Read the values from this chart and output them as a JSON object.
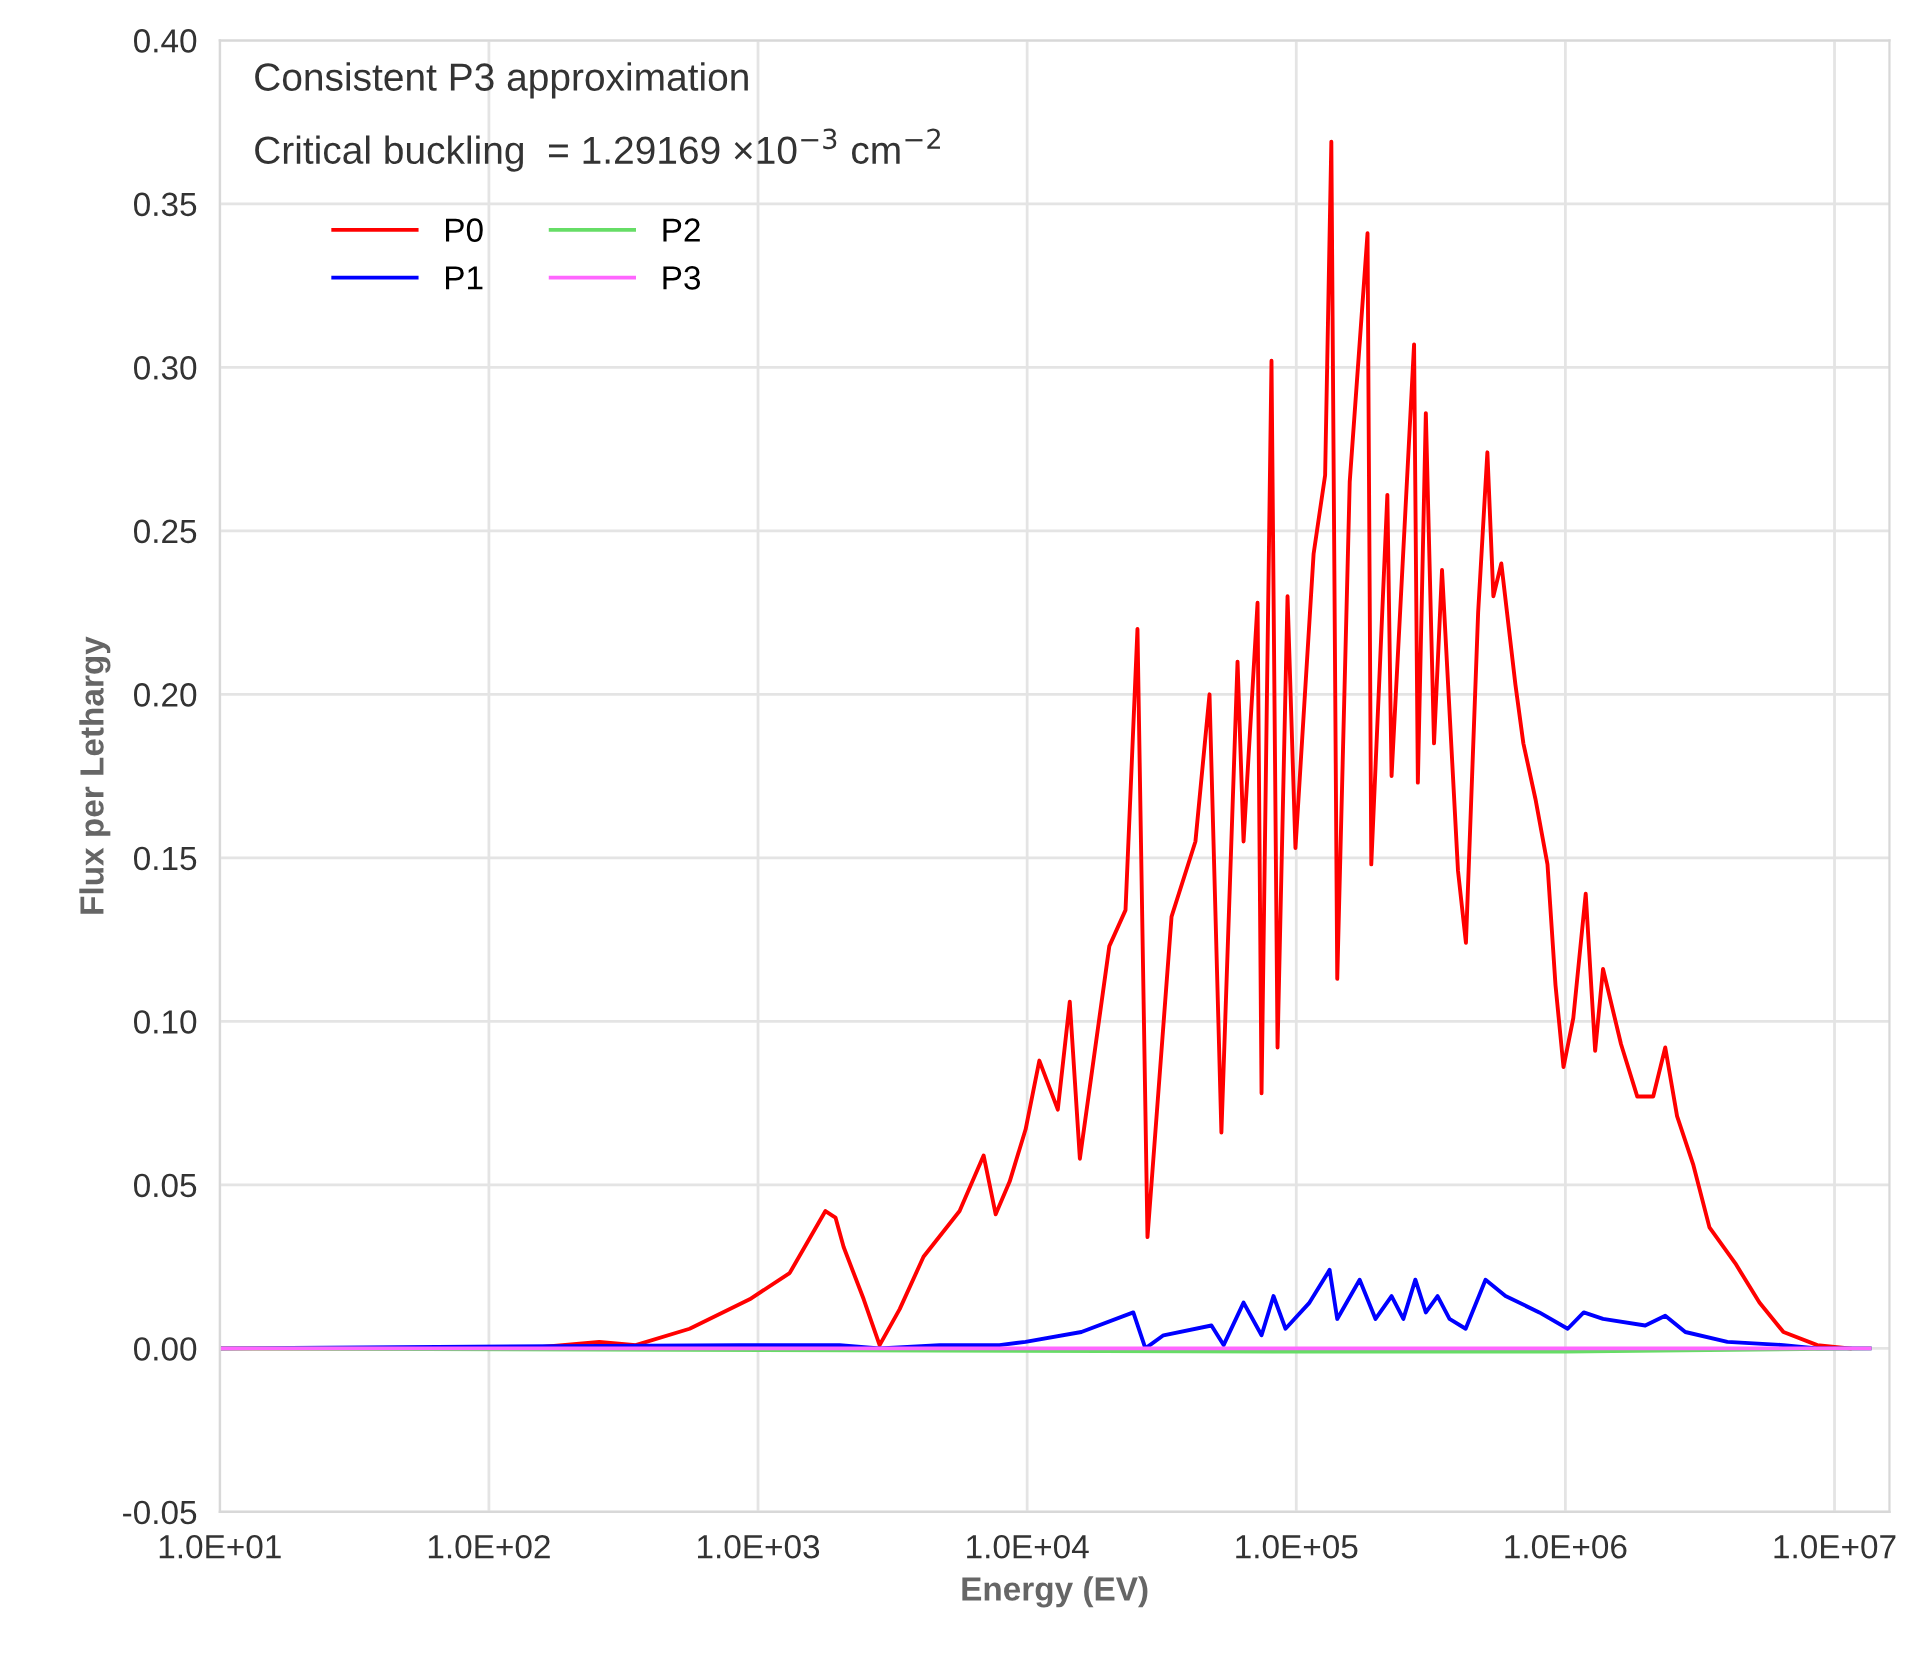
{
  "chart_data": {
    "type": "line",
    "xlabel": "Energy (EV)",
    "ylabel": "Flux per Lethargy",
    "annotations": [
      "Consistent P3 approximation",
      "Critical buckling  = 1.29169 ×10$^{−3}$ cm$^{−2}$"
    ],
    "log": "x",
    "grid": true,
    "legend": "top left",
    "line_style": "solid",
    "marker": "none",
    "xlim": [
      10,
      16000000
    ],
    "xticks": [
      {
        "value": 10,
        "label": "1.0E+01"
      },
      {
        "value": 100,
        "label": "1.0E+02"
      },
      {
        "value": 1000,
        "label": "1.0E+03"
      },
      {
        "value": 10000,
        "label": "1.0E+04"
      },
      {
        "value": 100000,
        "label": "1.0E+05"
      },
      {
        "value": 1000000,
        "label": "1.0E+06"
      },
      {
        "value": 10000000,
        "label": "1.0E+07"
      }
    ],
    "ylim": [
      -0.05,
      0.4
    ],
    "yticks": [
      {
        "value": -0.05,
        "label": "-0.05"
      },
      {
        "value": 0,
        "label": "0.00"
      },
      {
        "value": 0.05,
        "label": "0.05"
      },
      {
        "value": 0.1,
        "label": "0.10"
      },
      {
        "value": 0.15,
        "label": "0.15"
      },
      {
        "value": 0.2,
        "label": "0.20"
      },
      {
        "value": 0.25,
        "label": "0.25"
      },
      {
        "value": 0.3,
        "label": "0.30"
      },
      {
        "value": 0.35,
        "label": "0.35"
      },
      {
        "value": 0.4,
        "label": "0.40"
      }
    ],
    "series": [
      {
        "name": "P0",
        "color": "#ff0000",
        "x": [
          10,
          137,
          257,
          351,
          557,
          931,
          1310,
          1780,
          1940,
          2080,
          2470,
          2830,
          3360,
          4120,
          5610,
          6890,
          7640,
          8610,
          9870,
          11100,
          13000,
          14400,
          15700,
          20200,
          23200,
          25700,
          28000,
          34400,
          42200,
          47600,
          52700,
          60500,
          63700,
          71800,
          74300,
          80900,
          85200,
          92800,
          99300,
          116000,
          128000,
          135000,
          142000,
          158000,
          184000,
          190000,
          218000,
          226000,
          274000,
          283000,
          303000,
          325000,
          348000,
          399000,
          427000,
          474000,
          513000,
          540000,
          578000,
          652000,
          698000,
          774000,
          858000,
          919000,
          984000,
          1070000,
          1190000,
          1290000,
          1380000,
          1610000,
          1850000,
          2120000,
          2350000,
          2600000,
          2990000,
          3430000,
          4280000,
          5260000,
          6460000,
          8630000,
          11400000
        ],
        "values": [
          0,
          0,
          0.002,
          0.001,
          0.006,
          0.015,
          0.023,
          0.042,
          0.04,
          0.031,
          0.015,
          0.001,
          0.012,
          0.028,
          0.042,
          0.059,
          0.041,
          0.051,
          0.067,
          0.088,
          0.073,
          0.106,
          0.058,
          0.123,
          0.134,
          0.22,
          0.034,
          0.132,
          0.155,
          0.2,
          0.066,
          0.21,
          0.155,
          0.228,
          0.078,
          0.302,
          0.092,
          0.23,
          0.153,
          0.243,
          0.267,
          0.369,
          0.113,
          0.265,
          0.341,
          0.148,
          0.261,
          0.175,
          0.307,
          0.173,
          0.286,
          0.185,
          0.238,
          0.146,
          0.124,
          0.225,
          0.274,
          0.23,
          0.24,
          0.203,
          0.185,
          0.168,
          0.148,
          0.111,
          0.086,
          0.101,
          0.139,
          0.091,
          0.116,
          0.093,
          0.077,
          0.077,
          0.092,
          0.071,
          0.056,
          0.037,
          0.026,
          0.014,
          0.005,
          0.001,
          0
        ]
      },
      {
        "name": "P1",
        "color": "#0000ff",
        "x": [
          10,
          855,
          2010,
          2830,
          4730,
          7890,
          9860,
          15900,
          24800,
          27500,
          32100,
          48400,
          53700,
          63700,
          74300,
          82300,
          91200,
          112000,
          133000,
          142000,
          172000,
          197000,
          226000,
          250000,
          277000,
          303000,
          335000,
          371000,
          426000,
          505000,
          599000,
          800000,
          1020000,
          1170000,
          1380000,
          1980000,
          2350000,
          2790000,
          4000000,
          6460000,
          8630000,
          13500000
        ],
        "values": [
          0,
          0.001,
          0.001,
          0,
          0.001,
          0.001,
          0.002,
          0.005,
          0.011,
          0,
          0.004,
          0.007,
          0.001,
          0.014,
          0.004,
          0.016,
          0.006,
          0.014,
          0.024,
          0.009,
          0.021,
          0.009,
          0.016,
          0.009,
          0.021,
          0.011,
          0.016,
          0.009,
          0.006,
          0.021,
          0.016,
          0.011,
          0.006,
          0.011,
          0.009,
          0.007,
          0.01,
          0.005,
          0.002,
          0.001,
          0,
          0
        ]
      },
      {
        "name": "P2",
        "color": "#66dd66",
        "x": [
          10,
          100000,
          1000000,
          13500000
        ],
        "values": [
          0,
          -0.001,
          -0.001,
          0
        ]
      },
      {
        "name": "P3",
        "color": "#ff66ff",
        "x": [
          10,
          13500000
        ],
        "values": [
          0,
          0
        ]
      }
    ]
  }
}
